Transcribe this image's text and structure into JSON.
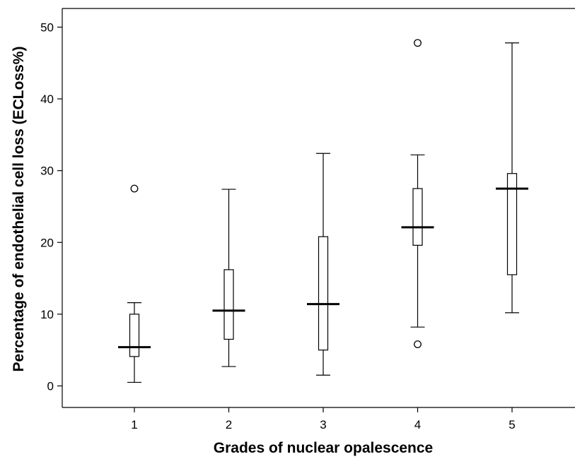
{
  "chart_data": {
    "type": "boxplot",
    "title": "",
    "xlabel": "Grades of nuclear opalescence",
    "ylabel": "Percentage of endothelial cell loss (ECLoss%)",
    "ylim": [
      -3,
      52.6
    ],
    "yticks": [
      0,
      10,
      20,
      30,
      40,
      50
    ],
    "grid": false,
    "categories": [
      "1",
      "2",
      "3",
      "4",
      "5"
    ],
    "boxes": [
      {
        "category": "1",
        "whisker_low": 0.5,
        "q1": 4.1,
        "median": 5.4,
        "q3": 10.0,
        "whisker_high": 11.6,
        "outliers": [
          27.5
        ]
      },
      {
        "category": "2",
        "whisker_low": 2.7,
        "q1": 6.5,
        "median": 10.5,
        "q3": 16.2,
        "whisker_high": 27.4,
        "outliers": []
      },
      {
        "category": "3",
        "whisker_low": 1.5,
        "q1": 5.0,
        "median": 11.4,
        "q3": 20.8,
        "whisker_high": 32.4,
        "outliers": []
      },
      {
        "category": "4",
        "whisker_low": 8.2,
        "q1": 19.6,
        "median": 22.1,
        "q3": 27.5,
        "whisker_high": 32.2,
        "outliers": [
          5.8,
          47.8
        ]
      },
      {
        "category": "5",
        "whisker_low": 10.2,
        "q1": 15.5,
        "median": 27.5,
        "q3": 29.6,
        "whisker_high": 47.8,
        "outliers": []
      }
    ]
  }
}
